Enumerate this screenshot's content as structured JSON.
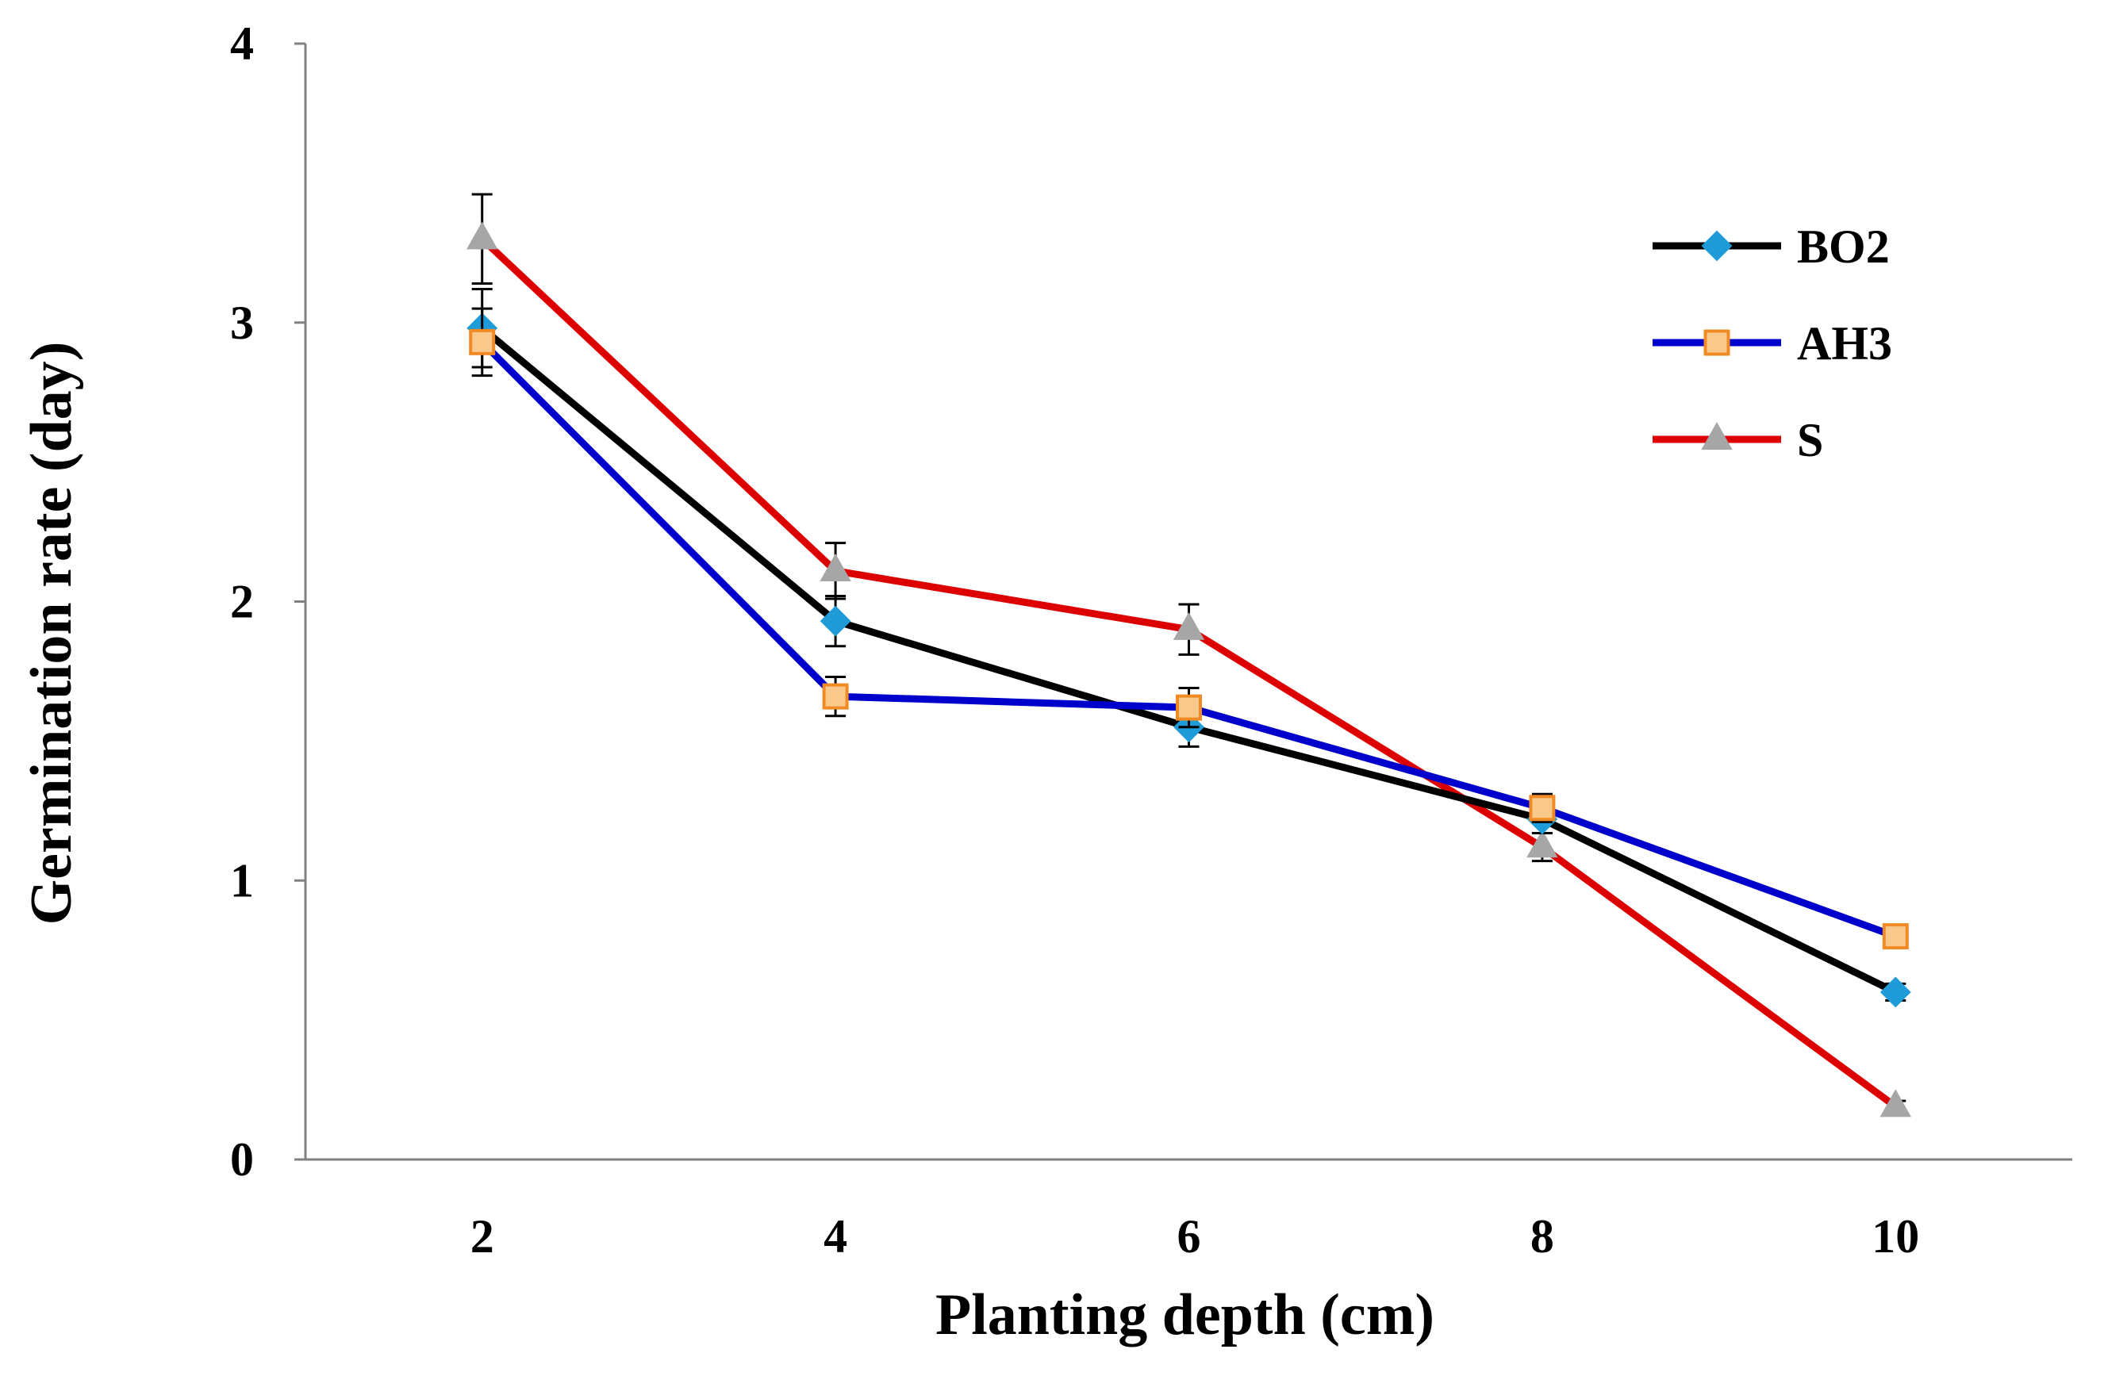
{
  "chart_data": {
    "type": "line",
    "title": "",
    "xlabel": "Planting depth (cm)",
    "ylabel": "Germination rate (day)",
    "x": [
      2,
      4,
      6,
      8,
      10
    ],
    "x_tick_labels": [
      "2",
      "4",
      "6",
      "8",
      "10"
    ],
    "y_tick_values": [
      0,
      1,
      2,
      3,
      4
    ],
    "y_tick_labels": [
      "0",
      "1",
      "2",
      "3",
      "4"
    ],
    "ylim": [
      0,
      4
    ],
    "grid": false,
    "legend_position": "top-right",
    "series": [
      {
        "name": "BO2",
        "values": [
          2.98,
          1.93,
          1.55,
          1.22,
          0.6
        ],
        "errors": [
          0.14,
          0.09,
          0.07,
          0.05,
          0.03
        ],
        "line_color": "#000000",
        "marker": "diamond",
        "marker_fill": "#1f9bd7",
        "marker_stroke": "#1f9bd7"
      },
      {
        "name": "AH3",
        "values": [
          2.93,
          1.66,
          1.62,
          1.26,
          0.8
        ],
        "errors": [
          0.12,
          0.07,
          0.07,
          0.05,
          0.02
        ],
        "line_color": "#0000cc",
        "marker": "square",
        "marker_fill": "#f9c98b",
        "marker_stroke": "#f08a24"
      },
      {
        "name": "S",
        "values": [
          3.3,
          2.11,
          1.9,
          1.12,
          0.19
        ],
        "errors": [
          0.16,
          0.1,
          0.09,
          0.05,
          0.02
        ],
        "line_color": "#dd0000",
        "marker": "triangle",
        "marker_fill": "#a6a6a6",
        "marker_stroke": "#a6a6a6"
      }
    ]
  }
}
